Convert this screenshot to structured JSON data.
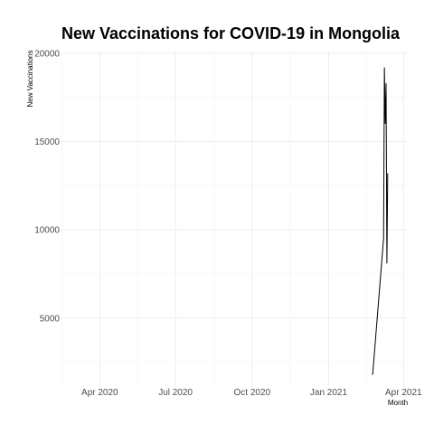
{
  "chart_data": {
    "type": "line",
    "title": "New Vaccinations for COVID-19 in Mongolia",
    "xlabel": "Month",
    "ylabel": "New Vaccinations",
    "x_ticks": [
      {
        "date": "2020-04-01",
        "label": "Apr 2020"
      },
      {
        "date": "2020-07-01",
        "label": "Jul 2020"
      },
      {
        "date": "2020-10-01",
        "label": "Oct 2020"
      },
      {
        "date": "2021-01-01",
        "label": "Jan 2021"
      },
      {
        "date": "2021-04-01",
        "label": "Apr 2021"
      }
    ],
    "y_ticks": [
      5000,
      10000,
      15000,
      20000
    ],
    "xlim": [
      "2020-02-15",
      "2021-04-05"
    ],
    "ylim": [
      1200,
      20100
    ],
    "grid": true,
    "series": [
      {
        "color": "#000000",
        "points": [
          {
            "x": "2021-02-22",
            "y": 1800
          },
          {
            "x": "2021-02-23",
            "y": 1850
          },
          {
            "x": "2021-03-08",
            "y": 9500
          },
          {
            "x": "2021-03-09",
            "y": 19200
          },
          {
            "x": "2021-03-10",
            "y": 16000
          },
          {
            "x": "2021-03-11",
            "y": 18300
          },
          {
            "x": "2021-03-12",
            "y": 8100
          },
          {
            "x": "2021-03-13",
            "y": 13200
          }
        ]
      }
    ]
  }
}
